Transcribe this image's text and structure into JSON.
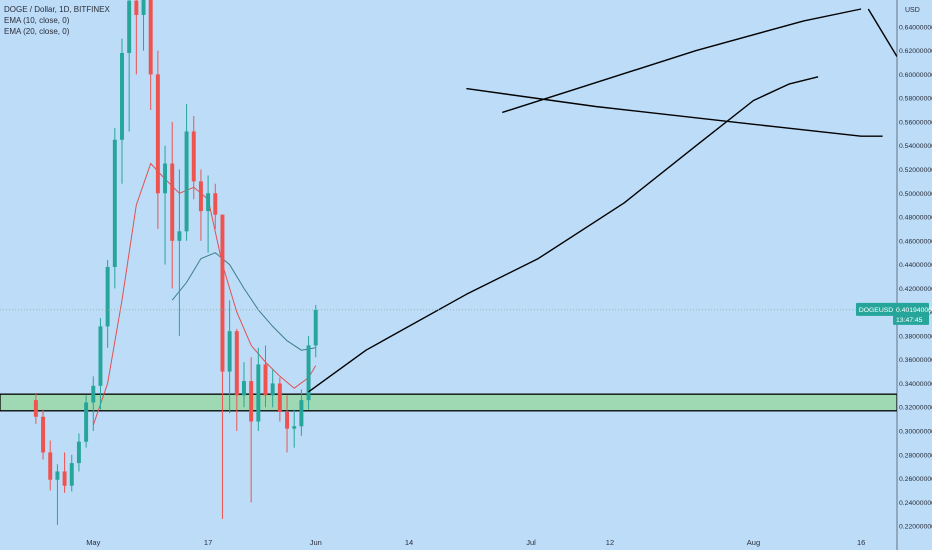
{
  "legend": {
    "symbol_line": "DOGE / Dollar, 1D, BITFINEX",
    "ema_fast": "EMA (10, close, 0)",
    "ema_slow": "EMA (20, close, 0)"
  },
  "price_tag": {
    "symbol": "DOGEUSD",
    "price": "0.40194000",
    "countdown": "13:47:45"
  },
  "colors": {
    "background": "#bcdcf8",
    "up_candle": "#26a69a",
    "down_candle": "#ef5350",
    "ema_fast": "#e05252",
    "ema_slow": "#3e7f8a",
    "support_zone": "#9ed9b4",
    "axis_text": "#2a2e39",
    "price_tag_bg": "#26a69a",
    "drawing": "#000000"
  },
  "chart_data": {
    "type": "candlestick",
    "y_axis": {
      "unit_label": "USD",
      "ylim": [
        0.21,
        0.655
      ],
      "ticks": [
        "0.22000000",
        "0.24000000",
        "0.26000000",
        "0.28000000",
        "0.30000000",
        "0.32000000",
        "0.34000000",
        "0.36000000",
        "0.38000000",
        "0.40000000",
        "0.42000000",
        "0.44000000",
        "0.46000000",
        "0.48000000",
        "0.50000000",
        "0.52000000",
        "0.54000000",
        "0.56000000",
        "0.58000000",
        "0.60000000",
        "0.62000000",
        "0.64000000"
      ]
    },
    "x_axis": {
      "start": "2021-04-18",
      "end": "2021-08-21",
      "ticks": [
        {
          "date": "2021-05-01",
          "label": "May"
        },
        {
          "date": "2021-05-17",
          "label": "17"
        },
        {
          "date": "2021-06-01",
          "label": "Jun"
        },
        {
          "date": "2021-06-14",
          "label": "14"
        },
        {
          "date": "2021-07-01",
          "label": "Jul"
        },
        {
          "date": "2021-07-12",
          "label": "12"
        },
        {
          "date": "2021-08-01",
          "label": "Aug"
        },
        {
          "date": "2021-08-16",
          "label": "16"
        }
      ]
    },
    "candles": [
      {
        "date": "2021-04-23",
        "o": 0.326,
        "h": 0.332,
        "l": 0.306,
        "c": 0.312
      },
      {
        "date": "2021-04-24",
        "o": 0.312,
        "h": 0.318,
        "l": 0.276,
        "c": 0.282
      },
      {
        "date": "2021-04-25",
        "o": 0.282,
        "h": 0.292,
        "l": 0.25,
        "c": 0.259
      },
      {
        "date": "2021-04-26",
        "o": 0.259,
        "h": 0.272,
        "l": 0.221,
        "c": 0.266
      },
      {
        "date": "2021-04-27",
        "o": 0.266,
        "h": 0.282,
        "l": 0.248,
        "c": 0.254
      },
      {
        "date": "2021-04-28",
        "o": 0.254,
        "h": 0.28,
        "l": 0.249,
        "c": 0.273
      },
      {
        "date": "2021-04-29",
        "o": 0.273,
        "h": 0.298,
        "l": 0.266,
        "c": 0.291
      },
      {
        "date": "2021-04-30",
        "o": 0.291,
        "h": 0.33,
        "l": 0.286,
        "c": 0.324
      },
      {
        "date": "2021-05-01",
        "o": 0.324,
        "h": 0.346,
        "l": 0.3,
        "c": 0.338
      },
      {
        "date": "2021-05-02",
        "o": 0.338,
        "h": 0.395,
        "l": 0.318,
        "c": 0.388
      },
      {
        "date": "2021-05-03",
        "o": 0.388,
        "h": 0.444,
        "l": 0.37,
        "c": 0.438
      },
      {
        "date": "2021-05-04",
        "o": 0.438,
        "h": 0.555,
        "l": 0.42,
        "c": 0.545
      },
      {
        "date": "2021-05-05",
        "o": 0.545,
        "h": 0.63,
        "l": 0.508,
        "c": 0.618
      },
      {
        "date": "2021-05-06",
        "o": 0.618,
        "h": 0.68,
        "l": 0.552,
        "c": 0.662
      },
      {
        "date": "2021-05-07",
        "o": 0.662,
        "h": 0.69,
        "l": 0.6,
        "c": 0.65
      },
      {
        "date": "2021-05-08",
        "o": 0.65,
        "h": 0.7,
        "l": 0.62,
        "c": 0.69
      },
      {
        "date": "2021-05-09",
        "o": 0.69,
        "h": 0.7,
        "l": 0.57,
        "c": 0.6
      },
      {
        "date": "2021-05-10",
        "o": 0.6,
        "h": 0.62,
        "l": 0.47,
        "c": 0.5
      },
      {
        "date": "2021-05-11",
        "o": 0.5,
        "h": 0.54,
        "l": 0.44,
        "c": 0.525
      },
      {
        "date": "2021-05-12",
        "o": 0.525,
        "h": 0.56,
        "l": 0.42,
        "c": 0.46
      },
      {
        "date": "2021-05-13",
        "o": 0.46,
        "h": 0.52,
        "l": 0.38,
        "c": 0.468
      },
      {
        "date": "2021-05-14",
        "o": 0.468,
        "h": 0.575,
        "l": 0.46,
        "c": 0.552
      },
      {
        "date": "2021-05-15",
        "o": 0.552,
        "h": 0.565,
        "l": 0.495,
        "c": 0.51
      },
      {
        "date": "2021-05-16",
        "o": 0.51,
        "h": 0.52,
        "l": 0.46,
        "c": 0.485
      },
      {
        "date": "2021-05-17",
        "o": 0.485,
        "h": 0.515,
        "l": 0.45,
        "c": 0.5
      },
      {
        "date": "2021-05-18",
        "o": 0.5,
        "h": 0.508,
        "l": 0.47,
        "c": 0.482
      },
      {
        "date": "2021-05-19",
        "o": 0.482,
        "h": 0.482,
        "l": 0.226,
        "c": 0.35
      },
      {
        "date": "2021-05-20",
        "o": 0.35,
        "h": 0.41,
        "l": 0.315,
        "c": 0.384
      },
      {
        "date": "2021-05-21",
        "o": 0.384,
        "h": 0.386,
        "l": 0.3,
        "c": 0.33
      },
      {
        "date": "2021-05-22",
        "o": 0.33,
        "h": 0.358,
        "l": 0.32,
        "c": 0.342
      },
      {
        "date": "2021-05-23",
        "o": 0.342,
        "h": 0.362,
        "l": 0.24,
        "c": 0.308
      },
      {
        "date": "2021-05-24",
        "o": 0.308,
        "h": 0.37,
        "l": 0.3,
        "c": 0.356
      },
      {
        "date": "2021-05-25",
        "o": 0.356,
        "h": 0.372,
        "l": 0.32,
        "c": 0.33
      },
      {
        "date": "2021-05-26",
        "o": 0.33,
        "h": 0.352,
        "l": 0.32,
        "c": 0.34
      },
      {
        "date": "2021-05-27",
        "o": 0.34,
        "h": 0.345,
        "l": 0.308,
        "c": 0.316
      },
      {
        "date": "2021-05-28",
        "o": 0.316,
        "h": 0.33,
        "l": 0.282,
        "c": 0.302
      },
      {
        "date": "2021-05-29",
        "o": 0.302,
        "h": 0.318,
        "l": 0.286,
        "c": 0.304
      },
      {
        "date": "2021-05-30",
        "o": 0.304,
        "h": 0.335,
        "l": 0.296,
        "c": 0.326
      },
      {
        "date": "2021-05-31",
        "o": 0.326,
        "h": 0.38,
        "l": 0.318,
        "c": 0.372
      },
      {
        "date": "2021-06-01",
        "o": 0.372,
        "h": 0.406,
        "l": 0.362,
        "c": 0.402
      }
    ],
    "ema_fast": [
      {
        "date": "2021-05-01",
        "v": 0.305
      },
      {
        "date": "2021-05-03",
        "v": 0.34
      },
      {
        "date": "2021-05-05",
        "v": 0.41
      },
      {
        "date": "2021-05-07",
        "v": 0.49
      },
      {
        "date": "2021-05-09",
        "v": 0.525
      },
      {
        "date": "2021-05-11",
        "v": 0.512
      },
      {
        "date": "2021-05-13",
        "v": 0.5
      },
      {
        "date": "2021-05-15",
        "v": 0.505
      },
      {
        "date": "2021-05-17",
        "v": 0.495
      },
      {
        "date": "2021-05-19",
        "v": 0.44
      },
      {
        "date": "2021-05-21",
        "v": 0.4
      },
      {
        "date": "2021-05-23",
        "v": 0.372
      },
      {
        "date": "2021-05-25",
        "v": 0.358
      },
      {
        "date": "2021-05-27",
        "v": 0.346
      },
      {
        "date": "2021-05-29",
        "v": 0.336
      },
      {
        "date": "2021-05-31",
        "v": 0.345
      },
      {
        "date": "2021-06-01",
        "v": 0.355
      }
    ],
    "ema_slow": [
      {
        "date": "2021-05-12",
        "v": 0.41
      },
      {
        "date": "2021-05-14",
        "v": 0.425
      },
      {
        "date": "2021-05-16",
        "v": 0.445
      },
      {
        "date": "2021-05-18",
        "v": 0.45
      },
      {
        "date": "2021-05-20",
        "v": 0.44
      },
      {
        "date": "2021-05-22",
        "v": 0.42
      },
      {
        "date": "2021-05-24",
        "v": 0.402
      },
      {
        "date": "2021-05-26",
        "v": 0.388
      },
      {
        "date": "2021-05-28",
        "v": 0.376
      },
      {
        "date": "2021-05-30",
        "v": 0.368
      },
      {
        "date": "2021-06-01",
        "v": 0.37
      }
    ],
    "last_price": 0.40194,
    "support_zone": {
      "low": 0.317,
      "high": 0.331
    },
    "drawings": [
      {
        "kind": "projection-curve",
        "points": [
          {
            "date": "2021-05-31",
            "v": 0.333
          },
          {
            "date": "2021-06-08",
            "v": 0.368
          },
          {
            "date": "2021-06-22",
            "v": 0.415
          },
          {
            "date": "2021-07-02",
            "v": 0.445
          },
          {
            "date": "2021-07-14",
            "v": 0.492
          },
          {
            "date": "2021-07-24",
            "v": 0.54
          },
          {
            "date": "2021-08-01",
            "v": 0.578
          },
          {
            "date": "2021-08-06",
            "v": 0.592
          },
          {
            "date": "2021-08-10",
            "v": 0.598
          }
        ]
      },
      {
        "kind": "trend-line",
        "points": [
          {
            "date": "2021-06-22",
            "v": 0.588
          },
          {
            "date": "2021-07-10",
            "v": 0.573
          },
          {
            "date": "2021-08-01",
            "v": 0.558
          },
          {
            "date": "2021-08-16",
            "v": 0.548
          },
          {
            "date": "2021-08-19",
            "v": 0.548
          }
        ]
      },
      {
        "kind": "trend-line",
        "points": [
          {
            "date": "2021-06-27",
            "v": 0.568
          },
          {
            "date": "2021-07-10",
            "v": 0.593
          },
          {
            "date": "2021-07-24",
            "v": 0.62
          },
          {
            "date": "2021-08-08",
            "v": 0.645
          },
          {
            "date": "2021-08-16",
            "v": 0.655
          }
        ]
      },
      {
        "kind": "trend-line",
        "points": [
          {
            "date": "2021-08-17",
            "v": 0.655
          },
          {
            "date": "2021-08-21",
            "v": 0.615
          }
        ]
      }
    ]
  }
}
